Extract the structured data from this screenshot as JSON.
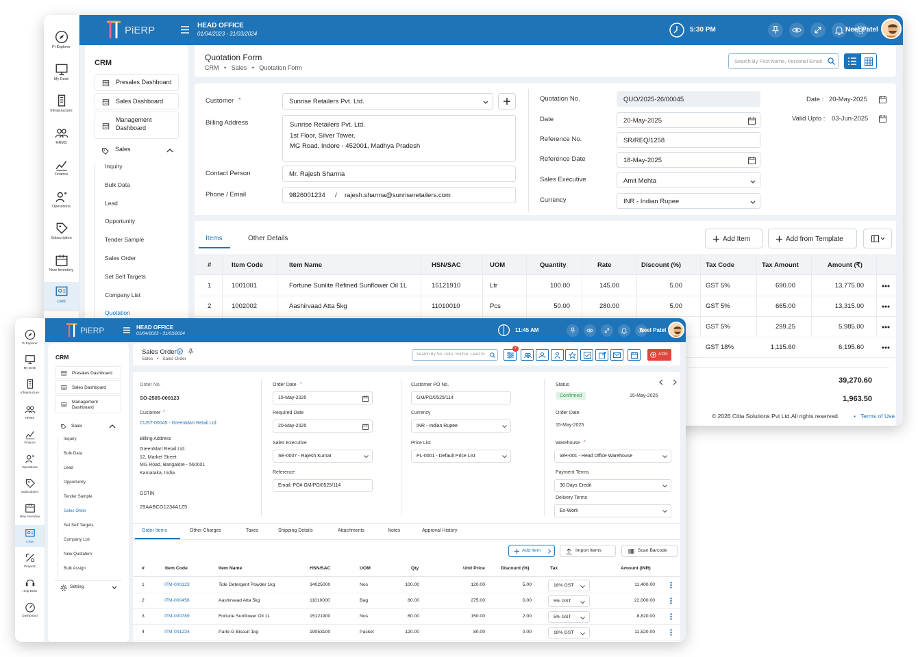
{
  "back": {
    "brand": "PiERP",
    "office": "HEAD OFFICE",
    "period": "01/04/2023 - 31/03/2024",
    "time": "5:30 PM",
    "user": "Neel Patel",
    "rail": [
      "Pi Explorer",
      "My Desk",
      "Infrastructure",
      "HRMS",
      "Finance",
      "Operations",
      "Subscription",
      "New Inventory",
      "CRM"
    ],
    "menu_title": "CRM",
    "menu": [
      "Presales Dashboard",
      "Sales Dashboard",
      "Management Dashboard",
      "Sales"
    ],
    "sub": [
      "Inquiry",
      "Bulk Data",
      "Lead",
      "Opportunity",
      "Tender Sample",
      "Sales Order",
      "Set Self Targets",
      "Company List",
      "Quotation"
    ],
    "page_title": "Quotation Form",
    "crumbs": [
      "CRM",
      "Sales",
      "Quotation Form"
    ],
    "search_ph": "Search By First Name, Personal Email",
    "form": {
      "customer_lbl": "Customer",
      "customer": "Sunrise Retailers Pvt. Ltd.",
      "billing_lbl": "Billing Address",
      "billing": [
        "Sunrise Retailers Pvt. Ltd.",
        "1st Floor, Silver Tower,",
        "MG Road, Indore -  452001, Madhya Pradesh"
      ],
      "contact_lbl": "Contact Person",
      "contact": "Mr. Rajesh Sharma",
      "phone_lbl": "Phone / Email",
      "phone": "9826001234",
      "sep": "/",
      "email": "rajesh.sharma@sunriseretailers.com",
      "qno_lbl": "Quotation No.",
      "qno": "QUO/2025-26/00045",
      "date_lbl": "Date",
      "date": "20-May-2025",
      "ref_lbl": "Reference No.",
      "ref": "SR/REQ/1258",
      "refdate_lbl": "Reference Date",
      "refdate": "18-May-2025",
      "exec_lbl": "Sales Executive",
      "exec": "Amit Mehta",
      "cur_lbl": "Currency",
      "cur": "INR - Indian Rupee",
      "date2_lbl": "Date :",
      "date2": "20-May-2025",
      "valid_lbl": "Valid Upto :",
      "valid": "03-Jun-2025"
    },
    "tabs": [
      "Items",
      "Other Details"
    ],
    "add_item": "Add Item",
    "add_template": "Add from Template",
    "cols": [
      "#",
      "Item Code",
      "Item Name",
      "HSN/SAC",
      "UOM",
      "Quantity",
      "Rate",
      "Discount (%)",
      "Tax Code",
      "Tax Amount",
      "Amount (₹)"
    ],
    "rows": [
      [
        "1",
        "1001001",
        "Fortune Sunlite Refined Sunflower Oil 1L",
        "15121910",
        "Ltr",
        "100.00",
        "145.00",
        "5.00",
        "GST 5%",
        "690.00",
        "13,775.00"
      ],
      [
        "2",
        "1002002",
        "Aashirvaad Atta 5kg",
        "11010010",
        "Pcs",
        "50.00",
        "280.00",
        "5.00",
        "GST 5%",
        "665.00",
        "13,315.00"
      ]
    ],
    "extra_rows": [
      [
        "GST 5%",
        "299.25",
        "5,985.00"
      ],
      [
        "GST 18%",
        "1,115.60",
        "6,195.60"
      ]
    ],
    "total1": "39,270.60",
    "total2": "1,963.50",
    "footer": "© 2026 Citta Solutions Pvt Ltd.All rights reserved.",
    "footer_bullet": "•",
    "terms": "Terms of Use"
  },
  "front": {
    "brand": "PiERP",
    "office": "HEAD OFFICE",
    "period": "01/04/2023 - 31/03/2024",
    "time": "11:45 AM",
    "user": "Neel Patel",
    "rail": [
      "Pi Explorer",
      "My Desk",
      "Infrastructure",
      "HRMS",
      "Finance",
      "Operations",
      "Subscription",
      "New Inventory",
      "CRM",
      "Projects",
      "Help Desk",
      "Dashboard"
    ],
    "menu_title": "CRM",
    "menu": [
      "Presales Dashboard",
      "Sales Dashboard",
      "Management Dashboard",
      "Sales"
    ],
    "sub": [
      "Inquiry",
      "Bulk Data",
      "Lead",
      "Opportunity",
      "Tender Sample",
      "Sales Order",
      "Set Self Targets",
      "Company List",
      "New Quotation",
      "Bulk Assign"
    ],
    "setting": "Setting",
    "page_title": "Sales Order",
    "crumbs": [
      "Sales",
      "Sales Order"
    ],
    "search_ph": "Search By No, Date, Source, Lead Status",
    "badge": "7",
    "add": "ADD",
    "form": {
      "ono_lbl": "Order No.",
      "ono": "SO-2505-000123",
      "cust_lbl": "Customer",
      "cust": "CUST-00045 - GreenMart Retail Ltd.",
      "bill_lbl": "Billing Address",
      "bill": [
        "GreenMart Retail Ltd.",
        "12, Market Street",
        "MG Road, Bangalore - 560001",
        "Karnataka, India"
      ],
      "gstin_lbl": "GSTIN",
      "gstin": "29AABCG1234A1Z5",
      "odate_lbl": "Order Date",
      "odate": "15-May-2025",
      "rdate_lbl": "Required Date",
      "rdate": "20-May-2025",
      "exec_lbl": "Sales Executive",
      "exec": "SE-0007 - Rajesh Kumar",
      "refl_lbl": "Reference",
      "refl": "Email: PO# GM/PO/0525/114",
      "po_lbl": "Customer PO No.",
      "po": "GM/PO/0525/114",
      "cur_lbl": "Currency",
      "cur": "INR - Indian Rupee",
      "price_lbl": "Price List",
      "price": "PL-0001 - Default Price List",
      "status_lbl": "Status",
      "status": "Confirmed",
      "status_date": "15-May-2025",
      "od2_lbl": "Order Date",
      "od2": "15-May-2025",
      "wh_lbl": "Warehouse",
      "wh": "WH-001 - Head Office Warehouse",
      "pay_lbl": "Payment Terms",
      "pay": "30 Days Credit",
      "del_lbl": "Delivery Terms",
      "del": "Ex-Work"
    },
    "tabs": [
      "Order Items",
      "Other Charges",
      "Taxes",
      "Shipping Details",
      "Attachments",
      "Notes",
      "Approval History"
    ],
    "add_item": "Add Item",
    "import": "Import Items",
    "scan": "Scan Barcode",
    "cols": [
      "#",
      "Item Code",
      "Item Name",
      "HSN/SAC",
      "UOM",
      "Qty",
      "Unit Price",
      "Discount (%)",
      "Tax",
      "Amount (INR)"
    ],
    "rows": [
      [
        "1",
        "ITM-000123",
        "Tide Detergent Powder 1kg",
        "34025000",
        "Nos",
        "100.00",
        "120.00",
        "5.00",
        "18% GST",
        "11,400.00"
      ],
      [
        "2",
        "ITM-000456",
        "Aashirvaad Atta 5kg",
        "11010000",
        "Bag",
        "80.00",
        "275.00",
        "0.00",
        "5% GST",
        "22,000.00"
      ],
      [
        "3",
        "ITM-000789",
        "Fortune Sunflower Oil 1L",
        "15121900",
        "Nos",
        "60.00",
        "150.00",
        "2.00",
        "5% GST",
        "8,820.00"
      ],
      [
        "4",
        "ITM-001234",
        "Parle-G Biscuit 1kg",
        "19053100",
        "Packet",
        "120.00",
        "80.00",
        "0.00",
        "18% GST",
        "11,520.00"
      ]
    ]
  },
  "colors": {
    "brand": "#1f73b7",
    "status_green": "#2e9b4f",
    "add_red": "#e2453c"
  }
}
